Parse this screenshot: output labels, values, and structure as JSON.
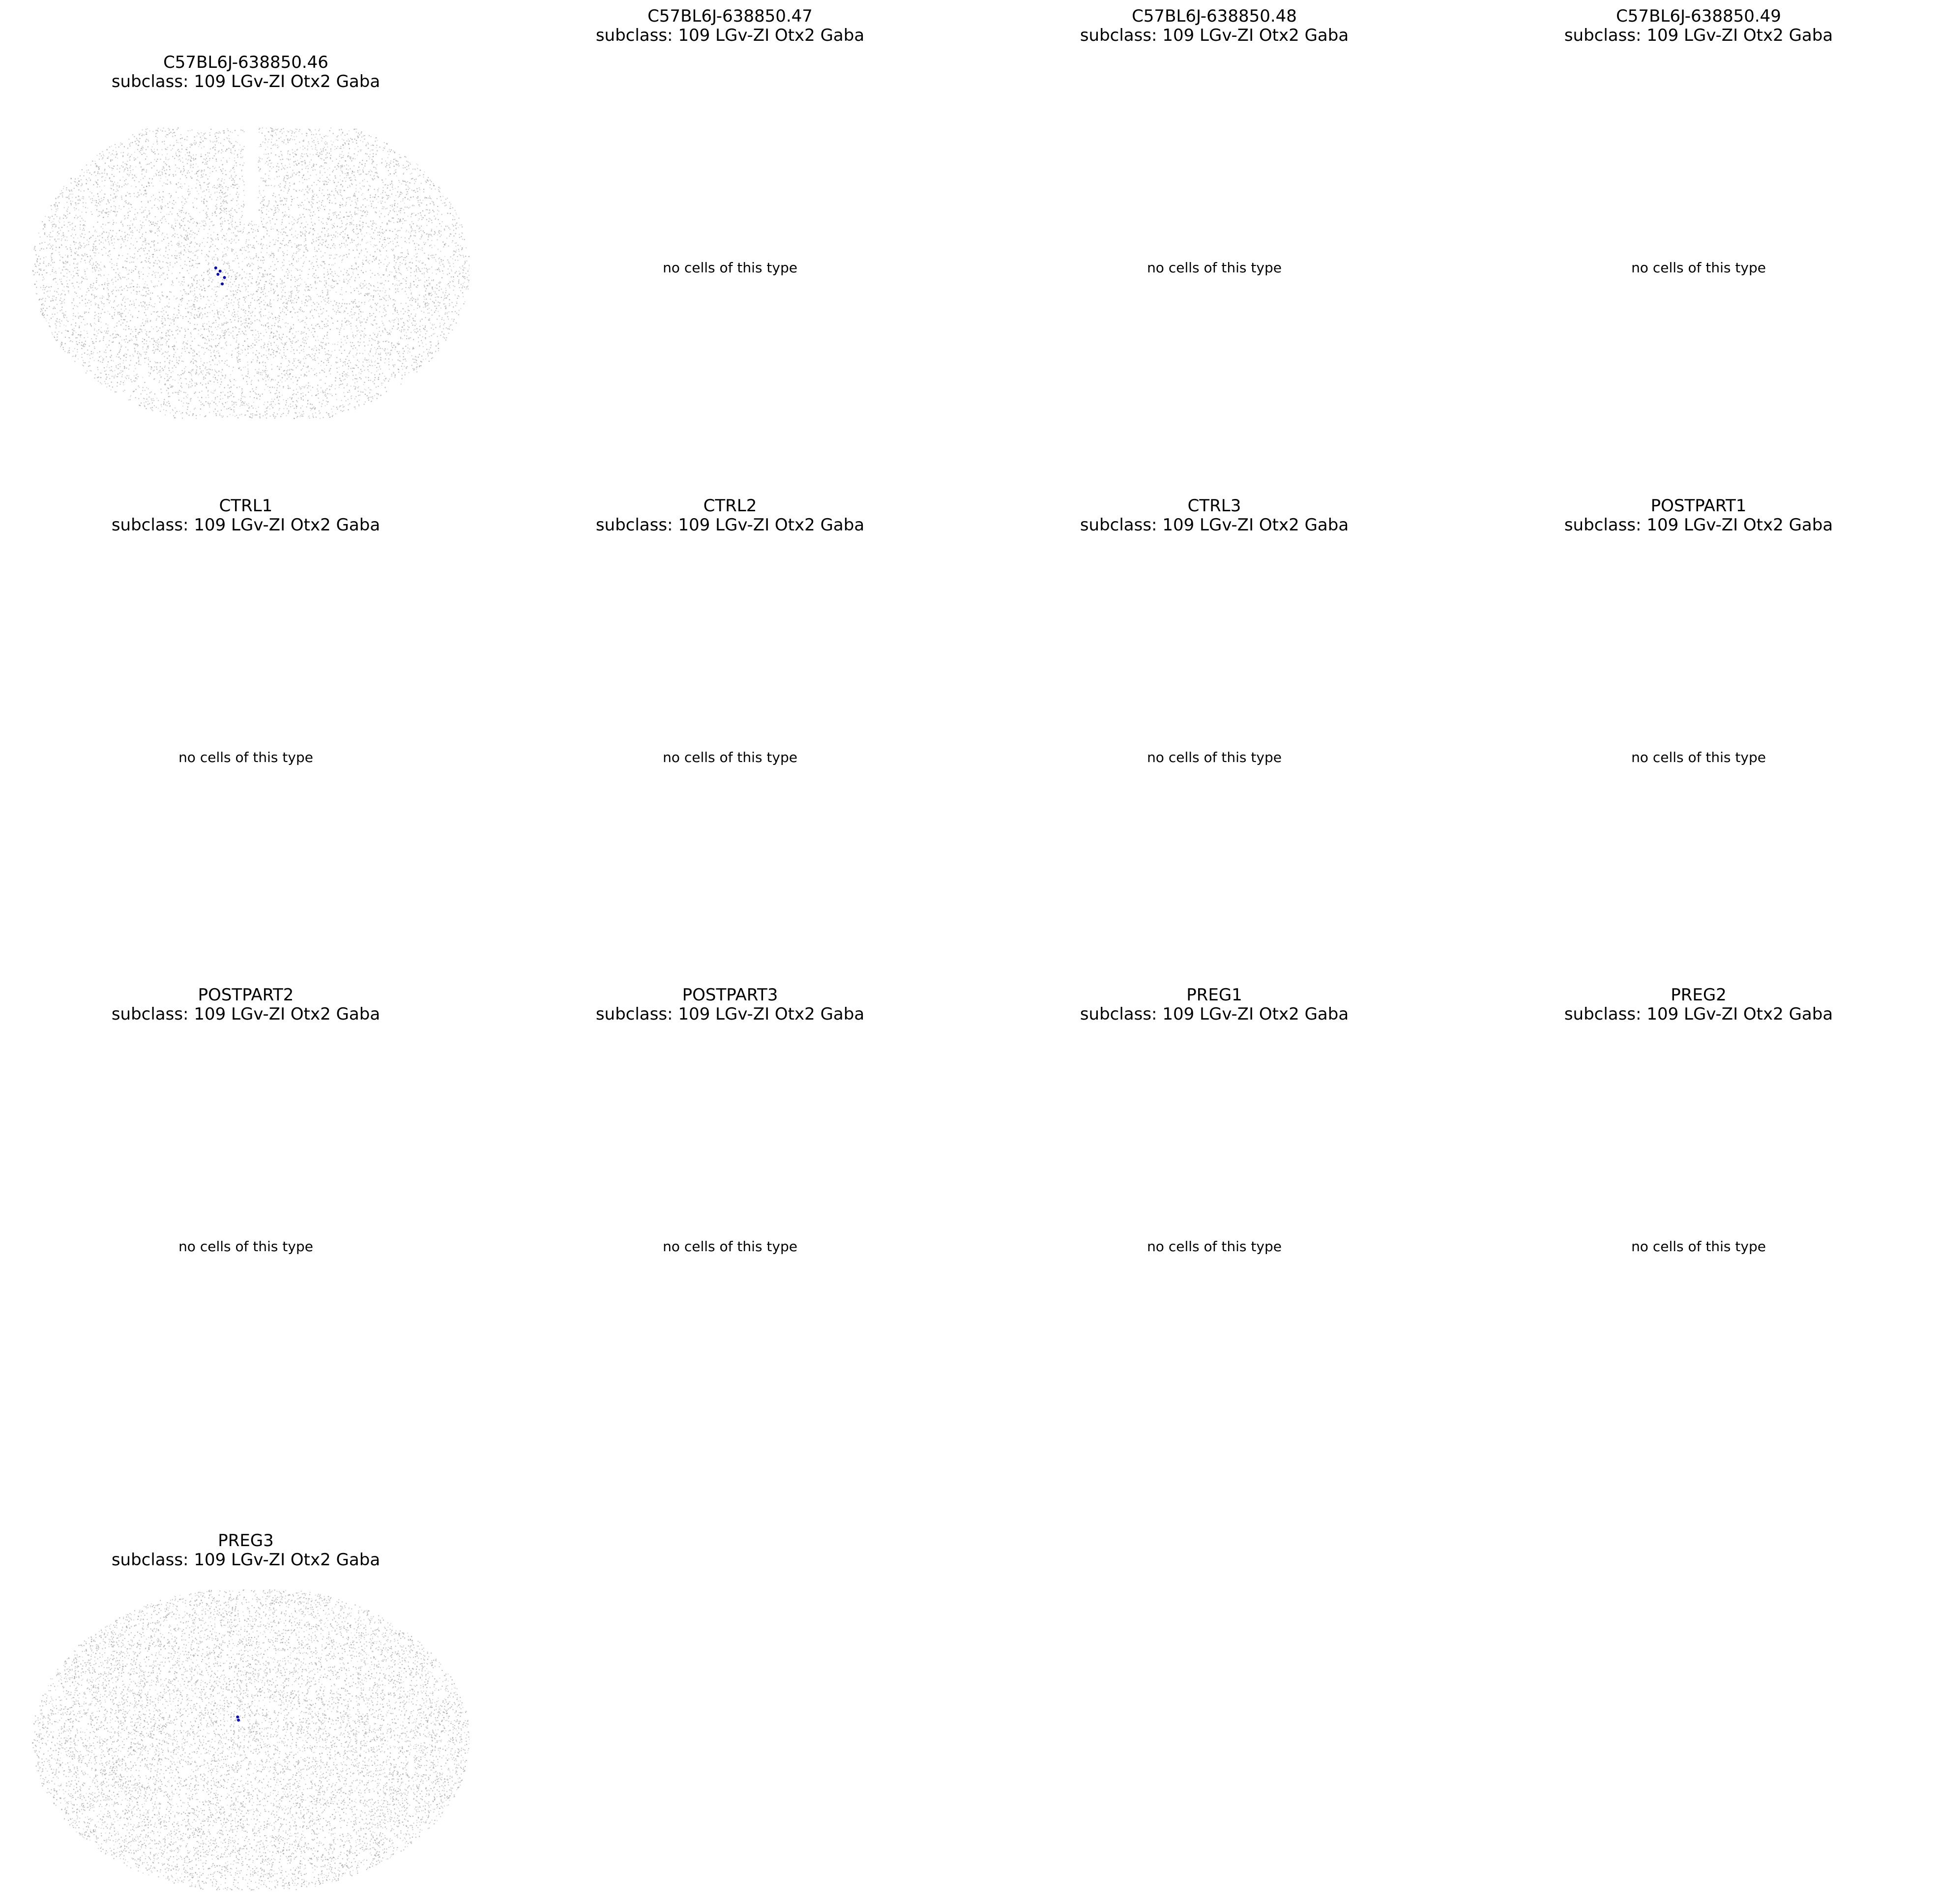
{
  "chart_data": {
    "type": "scatter",
    "layout": "small-multiples",
    "grid": false,
    "axes_visible": false,
    "highlight_color": "#0000cc",
    "background_color": "#9a9a9a",
    "empty_message": "no cells of this type",
    "panels": [
      {
        "sample": "C57BL6J-638850.46",
        "subtitle": "subclass: 109 LGv-ZI Otx2 Gaba",
        "has_cells": true
      },
      {
        "sample": "C57BL6J-638850.47",
        "subtitle": "subclass: 109 LGv-ZI Otx2 Gaba",
        "has_cells": false
      },
      {
        "sample": "C57BL6J-638850.48",
        "subtitle": "subclass: 109 LGv-ZI Otx2 Gaba",
        "has_cells": false
      },
      {
        "sample": "C57BL6J-638850.49",
        "subtitle": "subclass: 109 LGv-ZI Otx2 Gaba",
        "has_cells": false
      },
      {
        "sample": "CTRL1",
        "subtitle": "subclass: 109 LGv-ZI Otx2 Gaba",
        "has_cells": false
      },
      {
        "sample": "CTRL2",
        "subtitle": "subclass: 109 LGv-ZI Otx2 Gaba",
        "has_cells": false
      },
      {
        "sample": "CTRL3",
        "subtitle": "subclass: 109 LGv-ZI Otx2 Gaba",
        "has_cells": false
      },
      {
        "sample": "POSTPART1",
        "subtitle": "subclass: 109 LGv-ZI Otx2 Gaba",
        "has_cells": false
      },
      {
        "sample": "POSTPART2",
        "subtitle": "subclass: 109 LGv-ZI Otx2 Gaba",
        "has_cells": false
      },
      {
        "sample": "POSTPART3",
        "subtitle": "subclass: 109 LGv-ZI Otx2 Gaba",
        "has_cells": false
      },
      {
        "sample": "PREG1",
        "subtitle": "subclass: 109 LGv-ZI Otx2 Gaba",
        "has_cells": false
      },
      {
        "sample": "PREG2",
        "subtitle": "subclass: 109 LGv-ZI Otx2 Gaba",
        "has_cells": false
      },
      {
        "sample": "PREG3",
        "subtitle": "subclass: 109 LGv-ZI Otx2 Gaba",
        "has_cells": true
      }
    ]
  }
}
